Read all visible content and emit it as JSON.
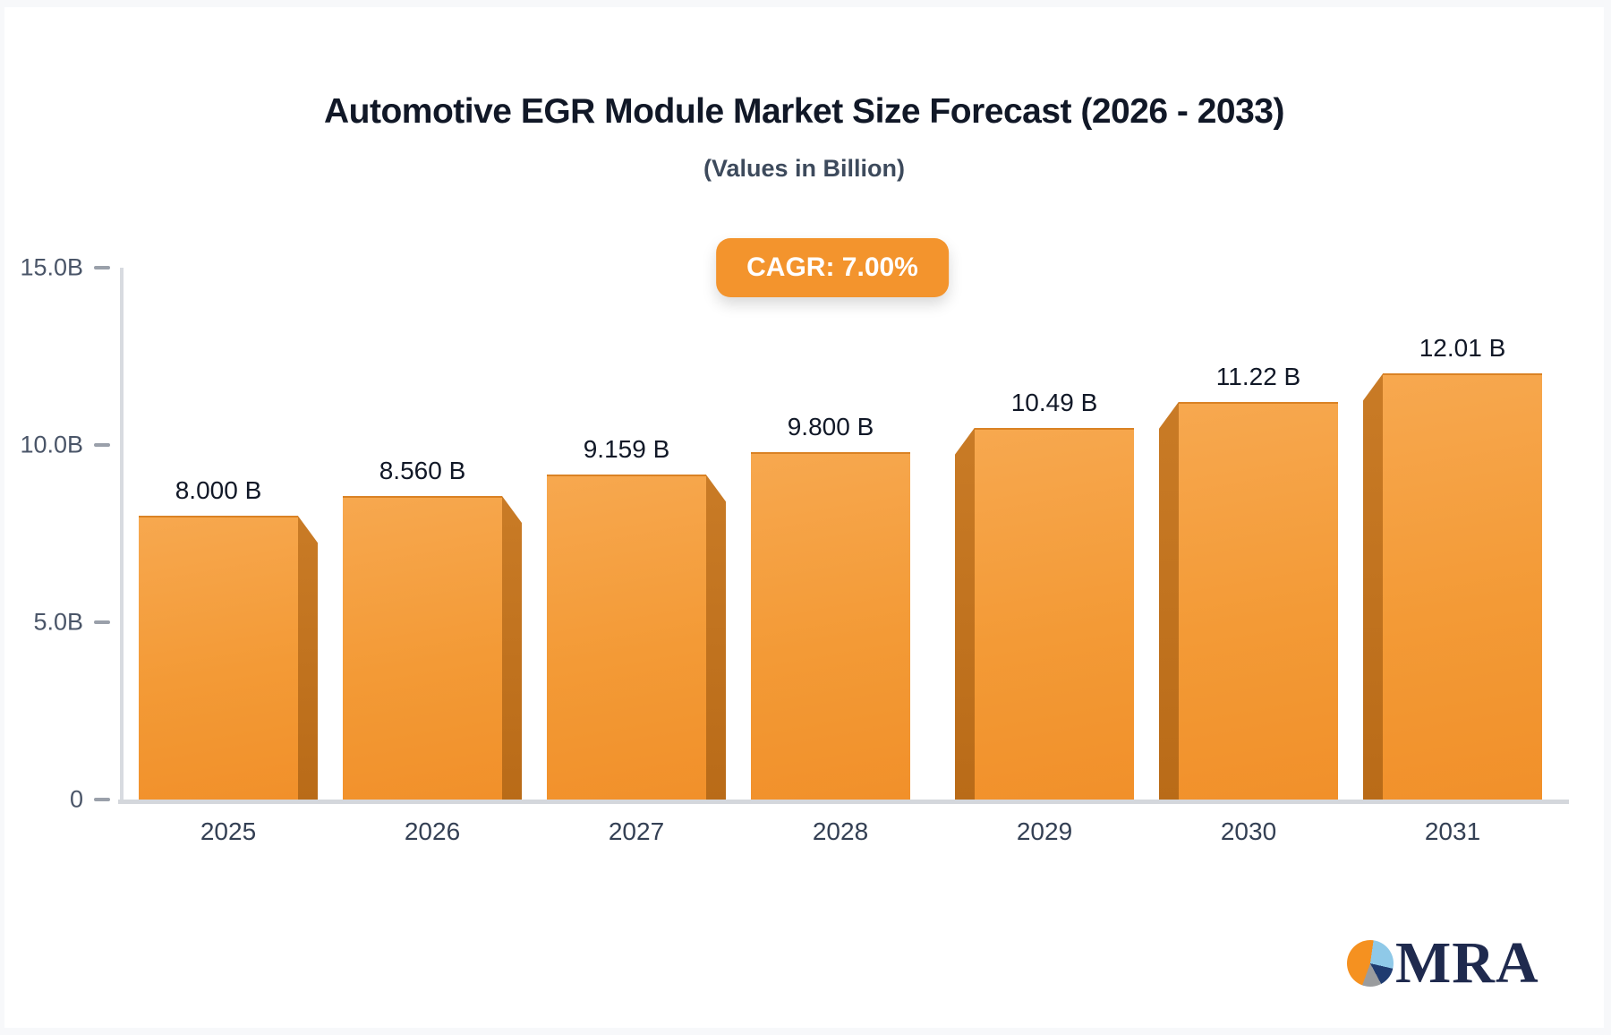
{
  "header": {
    "title": "Automotive EGR Module Market Size Forecast (2026 - 2033)",
    "subtitle": "(Values in Billion)"
  },
  "badge": {
    "label": "CAGR: 7.00%",
    "background": "#F3942D",
    "text_color": "#FFFFFF"
  },
  "chart_data": {
    "type": "bar",
    "title": "Automotive EGR Module Market Size Forecast (2026 - 2033)",
    "subtitle": "(Values in Billion)",
    "xlabel": "",
    "ylabel": "",
    "categories": [
      "2025",
      "2026",
      "2027",
      "2028",
      "2029",
      "2030",
      "2031"
    ],
    "values": [
      8.0,
      8.56,
      9.159,
      9.8,
      10.49,
      11.22,
      12.01
    ],
    "value_labels": [
      "8.000 B",
      "8.560 B",
      "9.159 B",
      "9.800 B",
      "10.49 B",
      "11.22 B",
      "12.01 B"
    ],
    "y_ticks": [
      {
        "label": "15.0B",
        "value": 15
      },
      {
        "label": "10.0B",
        "value": 10
      },
      {
        "label": "5.0B",
        "value": 5
      },
      {
        "label": "0",
        "value": 0
      }
    ],
    "ylim": [
      0,
      15
    ],
    "grid": false,
    "legend": false,
    "cagr": "7.00%",
    "bar_face_color": "#F39A36",
    "bar_side_color": "#BE701C",
    "axis_color": "#D8DBE0",
    "tick_text_color": "#4A5568",
    "label_text_color": "#111827"
  },
  "logo": {
    "text": "MRA",
    "pie_orange": "#F59120",
    "pie_lightblue": "#8FC9E8",
    "pie_navy": "#1F3B70",
    "pie_gray": "#9A9C9E",
    "text_color": "#1F2A4E"
  }
}
